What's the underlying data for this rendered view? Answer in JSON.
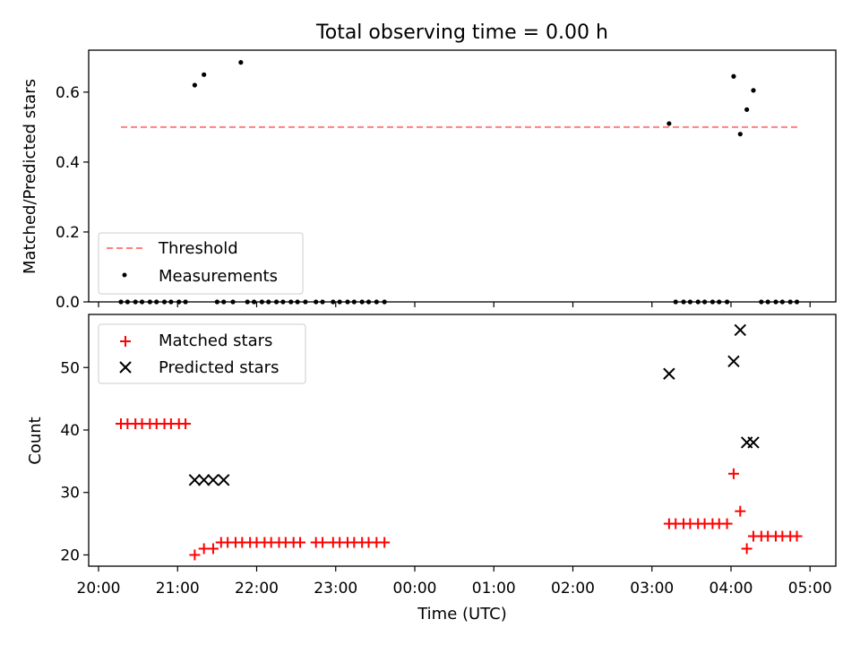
{
  "chart_data": {
    "title": "Total observing time = 0.00 h",
    "xlabel": "Time (UTC)",
    "xlim": [
      "20:00",
      "05:00"
    ],
    "xticks": [
      "20:00",
      "21:00",
      "22:00",
      "23:00",
      "00:00",
      "01:00",
      "02:00",
      "03:00",
      "04:00",
      "05:00"
    ],
    "panels": [
      {
        "type": "scatter",
        "ylabel": "Matched/Predicted stars",
        "ylim": [
          0.0,
          0.72
        ],
        "yticks": [
          "0.0",
          "0.2",
          "0.4",
          "0.6"
        ],
        "legend_position": "lower-left",
        "threshold": {
          "name": "Threshold",
          "value": 0.5,
          "x_range": [
            "20:17",
            "04:53"
          ]
        },
        "series": [
          {
            "name": "Measurements",
            "marker": "dot",
            "points": [
              [
                "20:17",
                0.0
              ],
              [
                "20:22",
                0.0
              ],
              [
                "20:28",
                0.0
              ],
              [
                "20:33",
                0.0
              ],
              [
                "20:39",
                0.0
              ],
              [
                "20:44",
                0.0
              ],
              [
                "20:50",
                0.0
              ],
              [
                "20:55",
                0.0
              ],
              [
                "21:01",
                0.0
              ],
              [
                "21:06",
                0.0
              ],
              [
                "21:13",
                0.62
              ],
              [
                "21:20",
                0.65
              ],
              [
                "21:30",
                0.0
              ],
              [
                "21:35",
                0.0
              ],
              [
                "21:42",
                0.0
              ],
              [
                "21:48",
                0.685
              ],
              [
                "21:53",
                0.0
              ],
              [
                "21:58",
                0.0
              ],
              [
                "22:04",
                0.0
              ],
              [
                "22:09",
                0.0
              ],
              [
                "22:15",
                0.0
              ],
              [
                "22:20",
                0.0
              ],
              [
                "22:26",
                0.0
              ],
              [
                "22:31",
                0.0
              ],
              [
                "22:37",
                0.0
              ],
              [
                "22:45",
                0.0
              ],
              [
                "22:50",
                0.0
              ],
              [
                "22:58",
                0.0
              ],
              [
                "23:03",
                0.0
              ],
              [
                "23:09",
                0.0
              ],
              [
                "23:14",
                0.0
              ],
              [
                "23:20",
                0.0
              ],
              [
                "23:25",
                0.0
              ],
              [
                "23:31",
                0.0
              ],
              [
                "23:37",
                0.0
              ],
              [
                "03:13",
                0.51
              ],
              [
                "03:18",
                0.0
              ],
              [
                "03:24",
                0.0
              ],
              [
                "03:29",
                0.0
              ],
              [
                "03:35",
                0.0
              ],
              [
                "03:40",
                0.0
              ],
              [
                "03:46",
                0.0
              ],
              [
                "03:51",
                0.0
              ],
              [
                "03:57",
                0.0
              ],
              [
                "04:02",
                0.645
              ],
              [
                "04:07",
                0.48
              ],
              [
                "04:12",
                0.55
              ],
              [
                "04:17",
                0.605
              ],
              [
                "04:23",
                0.0
              ],
              [
                "04:28",
                0.0
              ],
              [
                "04:34",
                0.0
              ],
              [
                "04:39",
                0.0
              ],
              [
                "04:45",
                0.0
              ],
              [
                "04:50",
                0.0
              ]
            ]
          }
        ]
      },
      {
        "type": "scatter",
        "ylabel": "Count",
        "ylim": [
          18.2,
          58.5
        ],
        "yticks": [
          "20",
          "30",
          "40",
          "50"
        ],
        "legend_position": "upper-left",
        "series": [
          {
            "name": "Matched stars",
            "marker": "plus",
            "color": "#ff0000",
            "points": [
              [
                "20:17",
                41
              ],
              [
                "20:22",
                41
              ],
              [
                "20:28",
                41
              ],
              [
                "20:33",
                41
              ],
              [
                "20:39",
                41
              ],
              [
                "20:44",
                41
              ],
              [
                "20:50",
                41
              ],
              [
                "20:55",
                41
              ],
              [
                "21:01",
                41
              ],
              [
                "21:06",
                41
              ],
              [
                "21:13",
                20
              ],
              [
                "21:20",
                21
              ],
              [
                "21:27",
                21
              ],
              [
                "21:33",
                22
              ],
              [
                "21:38",
                22
              ],
              [
                "21:44",
                22
              ],
              [
                "21:49",
                22
              ],
              [
                "21:55",
                22
              ],
              [
                "22:00",
                22
              ],
              [
                "22:06",
                22
              ],
              [
                "22:11",
                22
              ],
              [
                "22:17",
                22
              ],
              [
                "22:22",
                22
              ],
              [
                "22:28",
                22
              ],
              [
                "22:33",
                22
              ],
              [
                "22:45",
                22
              ],
              [
                "22:50",
                22
              ],
              [
                "22:58",
                22
              ],
              [
                "23:03",
                22
              ],
              [
                "23:09",
                22
              ],
              [
                "23:14",
                22
              ],
              [
                "23:20",
                22
              ],
              [
                "23:25",
                22
              ],
              [
                "23:31",
                22
              ],
              [
                "23:37",
                22
              ],
              [
                "03:13",
                25
              ],
              [
                "03:18",
                25
              ],
              [
                "03:24",
                25
              ],
              [
                "03:29",
                25
              ],
              [
                "03:35",
                25
              ],
              [
                "03:40",
                25
              ],
              [
                "03:46",
                25
              ],
              [
                "03:51",
                25
              ],
              [
                "03:57",
                25
              ],
              [
                "04:02",
                33
              ],
              [
                "04:07",
                27
              ],
              [
                "04:12",
                21
              ],
              [
                "04:17",
                23
              ],
              [
                "04:23",
                23
              ],
              [
                "04:28",
                23
              ],
              [
                "04:34",
                23
              ],
              [
                "04:39",
                23
              ],
              [
                "04:45",
                23
              ],
              [
                "04:50",
                23
              ]
            ]
          },
          {
            "name": "Predicted stars",
            "marker": "x",
            "color": "#000000",
            "points": [
              [
                "21:13",
                32
              ],
              [
                "21:20",
                32
              ],
              [
                "21:27",
                32
              ],
              [
                "21:35",
                32
              ],
              [
                "03:13",
                49
              ],
              [
                "04:02",
                51
              ],
              [
                "04:07",
                56
              ],
              [
                "04:12",
                38
              ],
              [
                "04:17",
                38
              ]
            ]
          }
        ]
      }
    ]
  }
}
